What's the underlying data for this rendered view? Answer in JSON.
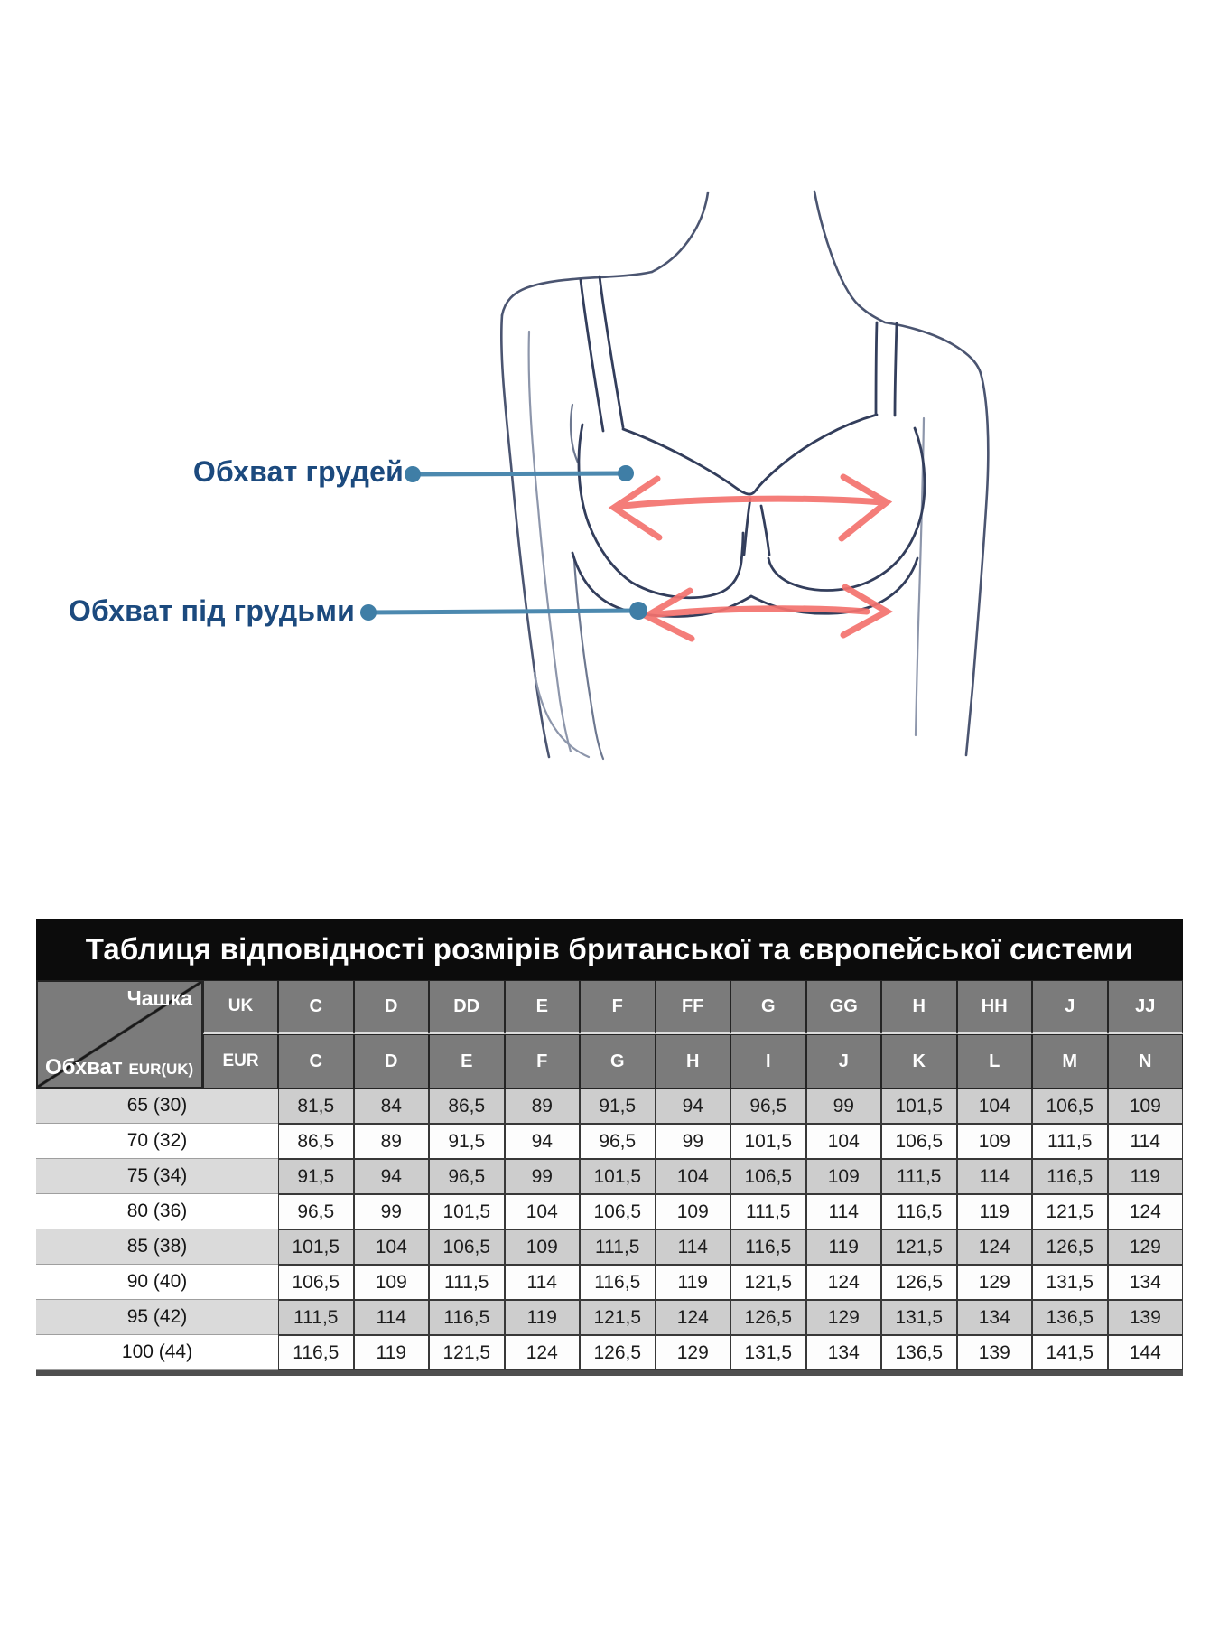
{
  "diagram": {
    "bust_label": "Обхват грудей",
    "underbust_label": "Обхват під грудьми",
    "colors": {
      "label_text": "#1c4a7e",
      "leader_line": "#4c89af",
      "leader_dot": "#3f7ea6",
      "arrow": "#f4726e",
      "sketch_body": "#4b5571",
      "sketch_bra": "#333e5c"
    }
  },
  "table": {
    "title": "Таблиця відповідності розмірів британської та європейської системи",
    "corner_cup_label": "Чашка",
    "corner_girth_label": "Обхват",
    "corner_girth_sub": "EUR(UK)",
    "uk_label": "UK",
    "eur_label": "EUR",
    "uk_cups": [
      "C",
      "D",
      "DD",
      "E",
      "F",
      "FF",
      "G",
      "GG",
      "H",
      "HH",
      "J",
      "JJ"
    ],
    "eur_cups": [
      "C",
      "D",
      "E",
      "F",
      "G",
      "H",
      "I",
      "J",
      "K",
      "L",
      "M",
      "N"
    ],
    "rows": [
      {
        "band": "65 (30)",
        "values": [
          "81,5",
          "84",
          "86,5",
          "89",
          "91,5",
          "94",
          "96,5",
          "99",
          "101,5",
          "104",
          "106,5",
          "109"
        ]
      },
      {
        "band": "70 (32)",
        "values": [
          "86,5",
          "89",
          "91,5",
          "94",
          "96,5",
          "99",
          "101,5",
          "104",
          "106,5",
          "109",
          "111,5",
          "114"
        ]
      },
      {
        "band": "75 (34)",
        "values": [
          "91,5",
          "94",
          "96,5",
          "99",
          "101,5",
          "104",
          "106,5",
          "109",
          "111,5",
          "114",
          "116,5",
          "119"
        ]
      },
      {
        "band": "80 (36)",
        "values": [
          "96,5",
          "99",
          "101,5",
          "104",
          "106,5",
          "109",
          "111,5",
          "114",
          "116,5",
          "119",
          "121,5",
          "124"
        ]
      },
      {
        "band": "85 (38)",
        "values": [
          "101,5",
          "104",
          "106,5",
          "109",
          "111,5",
          "114",
          "116,5",
          "119",
          "121,5",
          "124",
          "126,5",
          "129"
        ]
      },
      {
        "band": "90 (40)",
        "values": [
          "106,5",
          "109",
          "111,5",
          "114",
          "116,5",
          "119",
          "121,5",
          "124",
          "126,5",
          "129",
          "131,5",
          "134"
        ]
      },
      {
        "band": "95 (42)",
        "values": [
          "111,5",
          "114",
          "116,5",
          "119",
          "121,5",
          "124",
          "126,5",
          "129",
          "131,5",
          "134",
          "136,5",
          "139"
        ]
      },
      {
        "band": "100 (44)",
        "values": [
          "116,5",
          "119",
          "121,5",
          "124",
          "126,5",
          "129",
          "131,5",
          "134",
          "136,5",
          "139",
          "141,5",
          "144"
        ]
      }
    ]
  }
}
